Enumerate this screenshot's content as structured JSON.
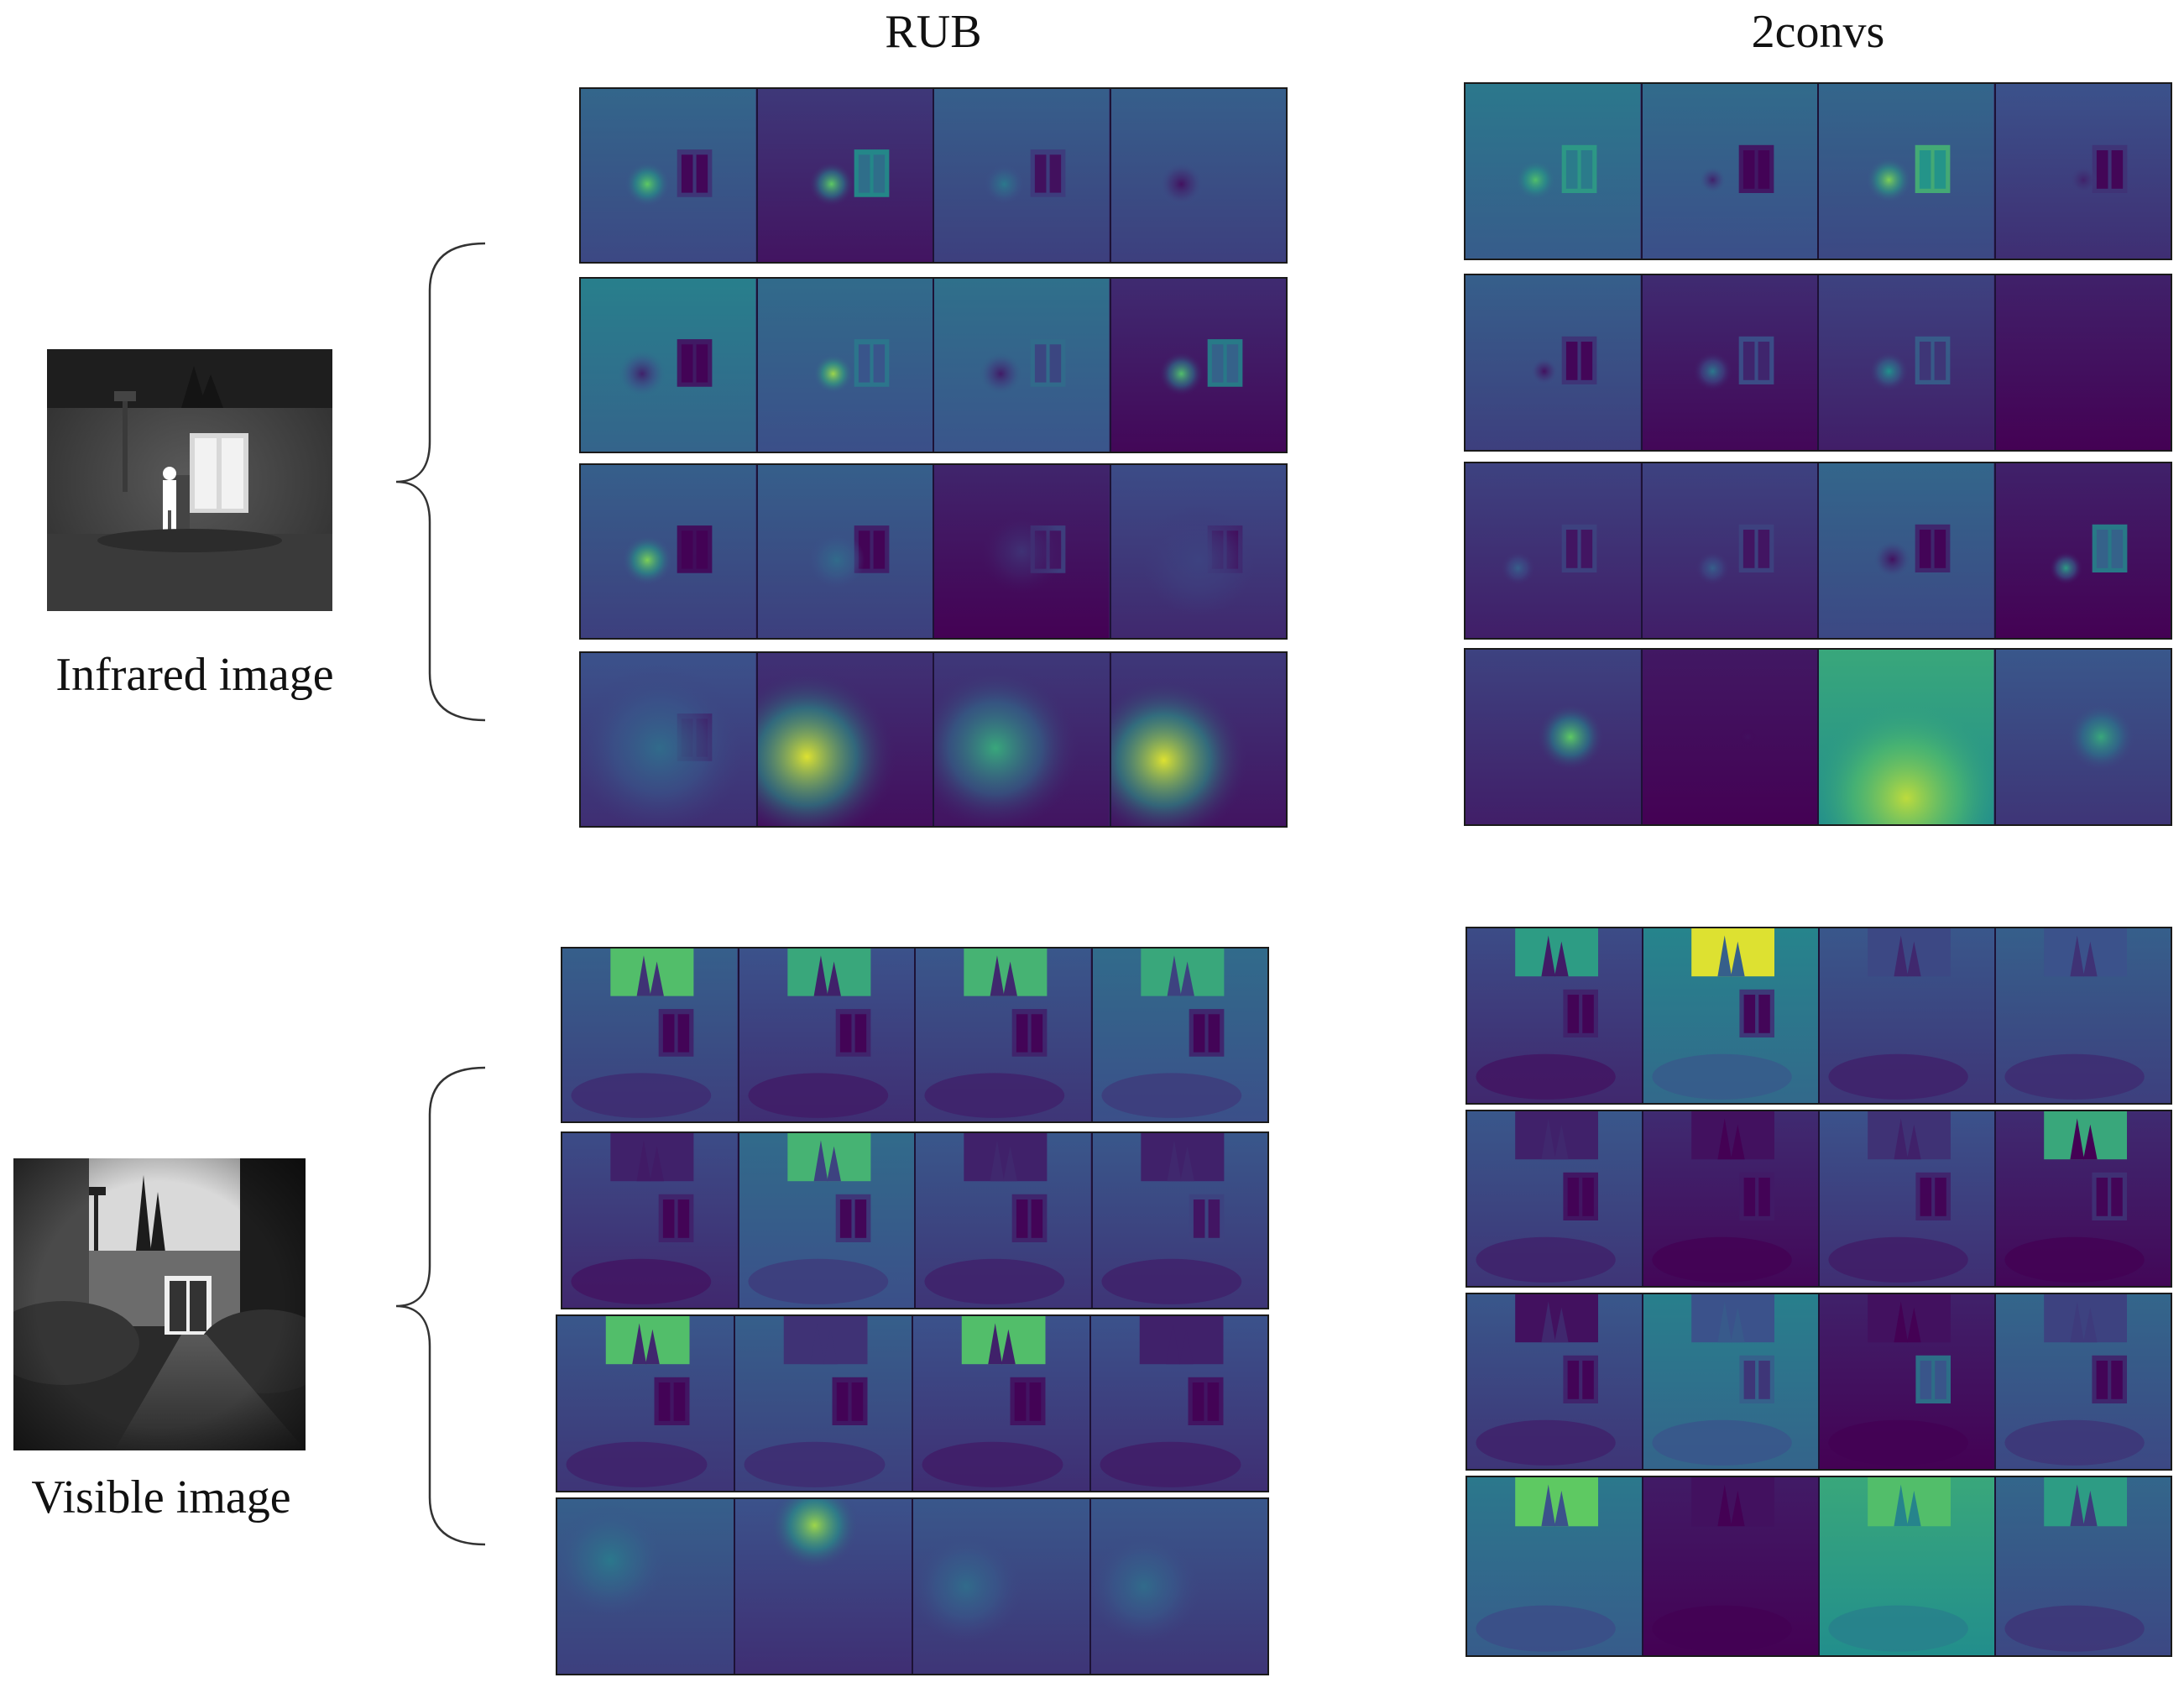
{
  "columns": {
    "rub_title": "RUB",
    "convs_title": "2convs"
  },
  "inputs": {
    "infrared_caption": "Infrared image",
    "visible_caption": "Visible image"
  },
  "colormap": [
    "#440154",
    "#3b528b",
    "#21918c",
    "#5ec962",
    "#fde725"
  ],
  "feature_maps": {
    "infrared": {
      "rub": [
        [
          {
            "base": 0.28,
            "hot": 0.75,
            "sx": 0.38,
            "sy": 0.55,
            "r": 0.08,
            "win": 0.15
          },
          {
            "base": 0.12,
            "hot": 0.75,
            "sx": 0.42,
            "sy": 0.55,
            "r": 0.08,
            "win": 0.5
          },
          {
            "base": 0.25,
            "hot": 0.4,
            "sx": 0.4,
            "sy": 0.55,
            "r": 0.07,
            "win": 0.18
          },
          {
            "base": 0.25,
            "hot": 0.05,
            "sx": 0.4,
            "sy": 0.55,
            "r": 0.08,
            "win": 0.0
          }
        ],
        [
          {
            "base": 0.38,
            "hot": 0.1,
            "sx": 0.35,
            "sy": 0.55,
            "r": 0.09,
            "win": 0.05
          },
          {
            "base": 0.3,
            "hot": 0.85,
            "sx": 0.43,
            "sy": 0.55,
            "r": 0.07,
            "win": 0.4
          },
          {
            "base": 0.32,
            "hot": 0.08,
            "sx": 0.38,
            "sy": 0.55,
            "r": 0.08,
            "win": 0.35
          },
          {
            "base": 0.08,
            "hot": 0.7,
            "sx": 0.4,
            "sy": 0.55,
            "r": 0.08,
            "win": 0.45
          }
        ],
        [
          {
            "base": 0.25,
            "hot": 0.8,
            "sx": 0.38,
            "sy": 0.55,
            "r": 0.09,
            "win": 0.02
          },
          {
            "base": 0.25,
            "hot": 0.35,
            "sx": 0.45,
            "sy": 0.55,
            "r": 0.1,
            "win": 0.08
          },
          {
            "base": 0.06,
            "hot": 0.15,
            "sx": 0.5,
            "sy": 0.5,
            "r": 0.15,
            "win": 0.2
          },
          {
            "base": 0.18,
            "hot": 0.2,
            "sx": 0.5,
            "sy": 0.55,
            "r": 0.2,
            "win": 0.1
          }
        ],
        [
          {
            "base": 0.2,
            "hot": 0.35,
            "sx": 0.45,
            "sy": 0.55,
            "r": 0.3,
            "win": 0.05
          },
          {
            "base": 0.1,
            "hot": 0.95,
            "sx": 0.28,
            "sy": 0.6,
            "r": 0.32,
            "win": 0.0
          },
          {
            "base": 0.12,
            "hot": 0.6,
            "sx": 0.35,
            "sy": 0.55,
            "r": 0.3,
            "win": 0.0
          },
          {
            "base": 0.12,
            "hot": 0.95,
            "sx": 0.3,
            "sy": 0.62,
            "r": 0.3,
            "win": 0.0
          }
        ]
      ],
      "convs": [
        [
          {
            "base": 0.35,
            "hot": 0.7,
            "sx": 0.4,
            "sy": 0.55,
            "r": 0.07,
            "win": 0.55
          },
          {
            "base": 0.3,
            "hot": 0.1,
            "sx": 0.4,
            "sy": 0.55,
            "r": 0.05,
            "win": 0.05
          },
          {
            "base": 0.28,
            "hot": 0.8,
            "sx": 0.4,
            "sy": 0.55,
            "r": 0.08,
            "win": 0.65
          },
          {
            "base": 0.2,
            "hot": 0.1,
            "sx": 0.5,
            "sy": 0.55,
            "r": 0.05,
            "win": 0.15
          }
        ],
        [
          {
            "base": 0.25,
            "hot": 0.05,
            "sx": 0.45,
            "sy": 0.55,
            "r": 0.05,
            "win": 0.15
          },
          {
            "base": 0.08,
            "hot": 0.4,
            "sx": 0.4,
            "sy": 0.55,
            "r": 0.07,
            "win": 0.25
          },
          {
            "base": 0.15,
            "hot": 0.5,
            "sx": 0.4,
            "sy": 0.55,
            "r": 0.07,
            "win": 0.3
          },
          {
            "base": 0.05,
            "hot": 0.0,
            "sx": 0.5,
            "sy": 0.5,
            "r": 0.05,
            "win": 0.0
          }
        ],
        [
          {
            "base": 0.15,
            "hot": 0.3,
            "sx": 0.3,
            "sy": 0.6,
            "r": 0.06,
            "win": 0.2
          },
          {
            "base": 0.15,
            "hot": 0.3,
            "sx": 0.4,
            "sy": 0.6,
            "r": 0.06,
            "win": 0.2
          },
          {
            "base": 0.28,
            "hot": 0.05,
            "sx": 0.42,
            "sy": 0.55,
            "r": 0.07,
            "win": 0.1
          },
          {
            "base": 0.05,
            "hot": 0.55,
            "sx": 0.4,
            "sy": 0.6,
            "r": 0.06,
            "win": 0.45
          }
        ],
        [
          {
            "base": 0.15,
            "hot": 0.75,
            "sx": 0.6,
            "sy": 0.5,
            "r": 0.12,
            "win": 0.0
          },
          {
            "base": 0.02,
            "hot": 0.05,
            "sx": 0.6,
            "sy": 0.5,
            "r": 0.03,
            "win": 0.0
          },
          {
            "base": 0.55,
            "hot": 0.9,
            "sx": 0.5,
            "sy": 0.85,
            "r": 0.35,
            "win": 0.0
          },
          {
            "base": 0.22,
            "hot": 0.6,
            "sx": 0.6,
            "sy": 0.5,
            "r": 0.12,
            "win": 0.0
          }
        ]
      ]
    },
    "visible": {
      "rub": [
        [
          {
            "base": 0.25,
            "hot": 0.0,
            "sx": 0.5,
            "sy": 0.5,
            "r": 0.05,
            "win": 0.1,
            "sky": 0.7
          },
          {
            "base": 0.2,
            "hot": 0.0,
            "sx": 0.5,
            "sy": 0.5,
            "r": 0.05,
            "win": 0.1,
            "sky": 0.6
          },
          {
            "base": 0.22,
            "hot": 0.0,
            "sx": 0.5,
            "sy": 0.5,
            "r": 0.05,
            "win": 0.1,
            "sky": 0.65
          },
          {
            "base": 0.3,
            "hot": 0.0,
            "sx": 0.5,
            "sy": 0.5,
            "r": 0.05,
            "win": 0.1,
            "sky": 0.6
          }
        ],
        [
          {
            "base": 0.18,
            "hot": 0.0,
            "sx": 0.5,
            "sy": 0.5,
            "r": 0.05,
            "win": 0.1,
            "sky": 0.1
          },
          {
            "base": 0.3,
            "hot": 0.0,
            "sx": 0.5,
            "sy": 0.5,
            "r": 0.05,
            "win": 0.15,
            "sky": 0.65
          },
          {
            "base": 0.22,
            "hot": 0.0,
            "sx": 0.5,
            "sy": 0.5,
            "r": 0.05,
            "win": 0.1,
            "sky": 0.1
          },
          {
            "base": 0.22,
            "hot": 0.0,
            "sx": 0.5,
            "sy": 0.5,
            "r": 0.05,
            "win": 0.2,
            "sky": 0.1
          }
        ],
        [
          {
            "base": 0.22,
            "hot": 0.0,
            "sx": 0.5,
            "sy": 0.5,
            "r": 0.05,
            "win": 0.05,
            "sky": 0.7
          },
          {
            "base": 0.25,
            "hot": 0.0,
            "sx": 0.5,
            "sy": 0.5,
            "r": 0.05,
            "win": 0.05,
            "sky": 0.15
          },
          {
            "base": 0.2,
            "hot": 0.0,
            "sx": 0.5,
            "sy": 0.5,
            "r": 0.05,
            "win": 0.05,
            "sky": 0.7
          },
          {
            "base": 0.2,
            "hot": 0.0,
            "sx": 0.5,
            "sy": 0.5,
            "r": 0.05,
            "win": 0.05,
            "sky": 0.1
          }
        ],
        [
          {
            "base": 0.25,
            "hot": 0.4,
            "sx": 0.3,
            "sy": 0.35,
            "r": 0.2,
            "win": 0.0,
            "sky": 0.0
          },
          {
            "base": 0.2,
            "hot": 0.85,
            "sx": 0.45,
            "sy": 0.15,
            "r": 0.16,
            "win": 0.0,
            "sky": 0.0
          },
          {
            "base": 0.22,
            "hot": 0.35,
            "sx": 0.3,
            "sy": 0.5,
            "r": 0.2,
            "win": 0.0,
            "sky": 0.0
          },
          {
            "base": 0.22,
            "hot": 0.35,
            "sx": 0.3,
            "sy": 0.5,
            "r": 0.2,
            "win": 0.0,
            "sky": 0.0
          }
        ]
      ],
      "convs": [
        [
          {
            "base": 0.18,
            "hot": 0.0,
            "sx": 0.5,
            "sy": 0.5,
            "r": 0.05,
            "win": 0.1,
            "sky": 0.55
          },
          {
            "base": 0.4,
            "hot": 0.0,
            "sx": 0.5,
            "sy": 0.5,
            "r": 0.05,
            "win": 0.15,
            "sky": 0.95
          },
          {
            "base": 0.22,
            "hot": 0.0,
            "sx": 0.5,
            "sy": 0.5,
            "r": 0.05,
            "win": 0.0,
            "sky": 0.22
          },
          {
            "base": 0.25,
            "hot": 0.0,
            "sx": 0.5,
            "sy": 0.5,
            "r": 0.05,
            "win": 0.0,
            "sky": 0.25
          }
        ],
        [
          {
            "base": 0.22,
            "hot": 0.0,
            "sx": 0.5,
            "sy": 0.5,
            "r": 0.05,
            "win": 0.05,
            "sky": 0.1
          },
          {
            "base": 0.08,
            "hot": 0.0,
            "sx": 0.5,
            "sy": 0.5,
            "r": 0.05,
            "win": 0.08,
            "sky": 0.05
          },
          {
            "base": 0.2,
            "hot": 0.0,
            "sx": 0.5,
            "sy": 0.5,
            "r": 0.05,
            "win": 0.1,
            "sky": 0.15
          },
          {
            "base": 0.08,
            "hot": 0.0,
            "sx": 0.5,
            "sy": 0.5,
            "r": 0.05,
            "win": 0.15,
            "sky": 0.6
          }
        ],
        [
          {
            "base": 0.22,
            "hot": 0.0,
            "sx": 0.5,
            "sy": 0.5,
            "r": 0.05,
            "win": 0.1,
            "sky": 0.05
          },
          {
            "base": 0.38,
            "hot": 0.0,
            "sx": 0.5,
            "sy": 0.5,
            "r": 0.05,
            "win": 0.3,
            "sky": 0.25
          },
          {
            "base": 0.05,
            "hot": 0.0,
            "sx": 0.5,
            "sy": 0.5,
            "r": 0.05,
            "win": 0.4,
            "sky": 0.05
          },
          {
            "base": 0.28,
            "hot": 0.0,
            "sx": 0.5,
            "sy": 0.5,
            "r": 0.05,
            "win": 0.1,
            "sky": 0.2
          }
        ],
        [
          {
            "base": 0.35,
            "hot": 0.0,
            "sx": 0.5,
            "sy": 0.5,
            "r": 0.05,
            "win": 0.0,
            "sky": 0.75
          },
          {
            "base": 0.03,
            "hot": 0.0,
            "sx": 0.5,
            "sy": 0.5,
            "r": 0.05,
            "win": 0.0,
            "sky": 0.05
          },
          {
            "base": 0.55,
            "hot": 0.0,
            "sx": 0.5,
            "sy": 0.5,
            "r": 0.05,
            "win": 0.0,
            "sky": 0.7
          },
          {
            "base": 0.28,
            "hot": 0.0,
            "sx": 0.5,
            "sy": 0.5,
            "r": 0.05,
            "win": 0.0,
            "sky": 0.55
          }
        ]
      ]
    }
  }
}
